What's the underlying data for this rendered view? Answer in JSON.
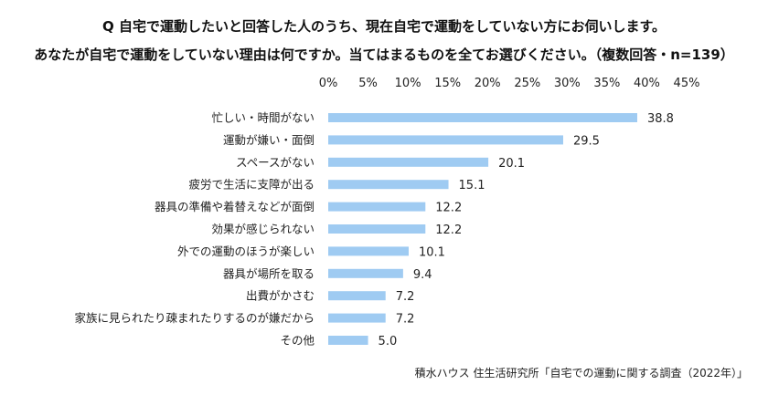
{
  "title_line1": "Q 自宅で運動したいと回答した人のうち、現在自宅で運動をしていない方にお伺いします。",
  "title_line2": "あなたが自宅で運動をしていない理由は何ですか。当てはまるものを全てお選びください。（複数回答・n=139）",
  "source": "積水ハウス 住生活研究所「自宅での運動に関する調査（2022年）」",
  "colors": {
    "bar": "#9fcbf2",
    "text": "#222222"
  },
  "chart_data": {
    "type": "bar",
    "orientation": "horizontal",
    "categories": [
      "忙しい・時間がない",
      "運動が嫌い・面倒",
      "スペースがない",
      "疲労で生活に支障が出る",
      "器具の準備や着替えなどが面倒",
      "効果が感じられない",
      "外での運動のほうが楽しい",
      "器具が場所を取る",
      "出費がかさむ",
      "家族に見られたり疎まれたりするのが嫌だから",
      "その他"
    ],
    "values": [
      38.8,
      29.5,
      20.1,
      15.1,
      12.2,
      12.2,
      10.1,
      9.4,
      7.2,
      7.2,
      5.0
    ],
    "value_labels": [
      "38.8",
      "29.5",
      "20.1",
      "15.1",
      "12.2",
      "12.2",
      "10.1",
      "9.4",
      "7.2",
      "7.2",
      "5.0"
    ],
    "xlim": [
      0,
      45
    ],
    "ticks": [
      "0%",
      "5%",
      "10%",
      "15%",
      "20%",
      "25%",
      "30%",
      "35%",
      "40%",
      "45%"
    ],
    "xaxis_position": "top",
    "grid": false,
    "legend": "none"
  }
}
